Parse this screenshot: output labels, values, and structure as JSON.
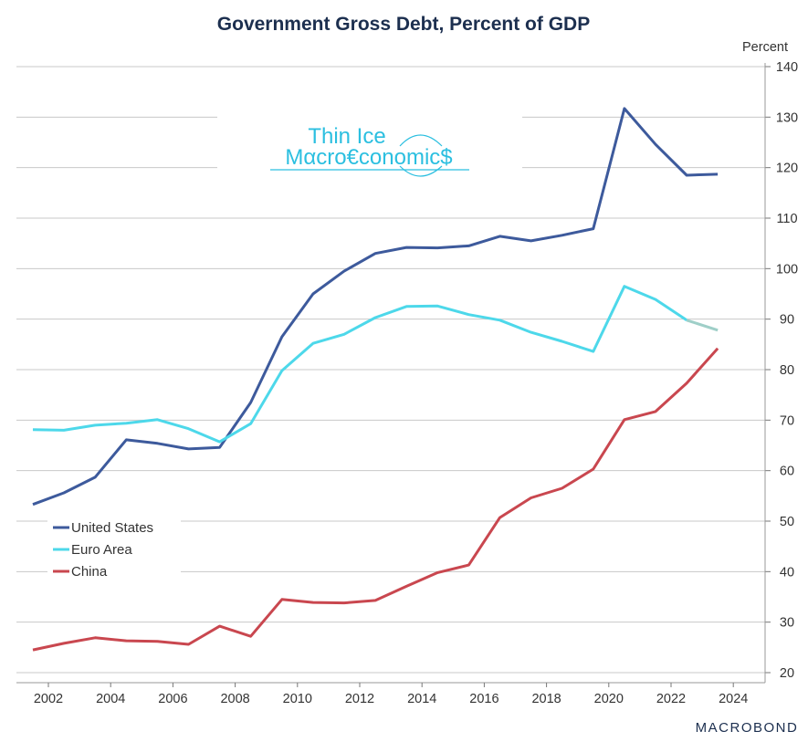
{
  "chart_data": {
    "type": "line",
    "title": "Government Gross Debt, Percent of GDP",
    "ylabel": "Percent",
    "xlabel": "",
    "ylim": [
      20,
      140
    ],
    "xlim": [
      2001,
      2024.5
    ],
    "y_ticks": [
      20,
      30,
      40,
      50,
      60,
      70,
      80,
      90,
      100,
      110,
      120,
      130,
      140
    ],
    "x_ticks": [
      2002,
      2004,
      2006,
      2008,
      2010,
      2012,
      2014,
      2016,
      2018,
      2020,
      2022,
      2024
    ],
    "grid": true,
    "legend_position": "bottom-left",
    "x": [
      2001,
      2002,
      2003,
      2004,
      2005,
      2006,
      2007,
      2008,
      2009,
      2010,
      2011,
      2012,
      2013,
      2014,
      2015,
      2016,
      2017,
      2018,
      2019,
      2020,
      2021,
      2022,
      2023
    ],
    "series": [
      {
        "name": "United States",
        "color": "#3d5a9c",
        "values": [
          53.3,
          55.6,
          58.7,
          66.1,
          65.4,
          64.3,
          64.6,
          73.5,
          86.5,
          95.0,
          99.5,
          103.0,
          104.2,
          104.1,
          104.5,
          106.4,
          105.5,
          106.6,
          107.9,
          131.7,
          124.6,
          118.5,
          118.7
        ]
      },
      {
        "name": "Euro Area",
        "color": "#4dd8ea",
        "forecast_color": "#9fcfc8",
        "values": [
          68.1,
          68.0,
          69.0,
          69.4,
          70.1,
          68.3,
          65.7,
          69.3,
          79.8,
          85.2,
          87.0,
          90.3,
          92.5,
          92.6,
          90.9,
          89.8,
          87.4,
          85.6,
          83.6,
          96.5,
          93.9,
          89.8,
          87.8
        ]
      },
      {
        "name": "China",
        "color": "#c9474f",
        "values": [
          24.5,
          25.8,
          26.9,
          26.3,
          26.2,
          25.6,
          29.2,
          27.2,
          34.5,
          33.9,
          33.8,
          34.3,
          37.1,
          39.8,
          41.3,
          50.7,
          54.6,
          56.5,
          60.3,
          70.1,
          71.7,
          77.3,
          84.2
        ]
      }
    ]
  },
  "logo": {
    "line1": "Thin Ice",
    "line2": "Mαcro€conomic$"
  },
  "source_brand": "MACROBOND"
}
